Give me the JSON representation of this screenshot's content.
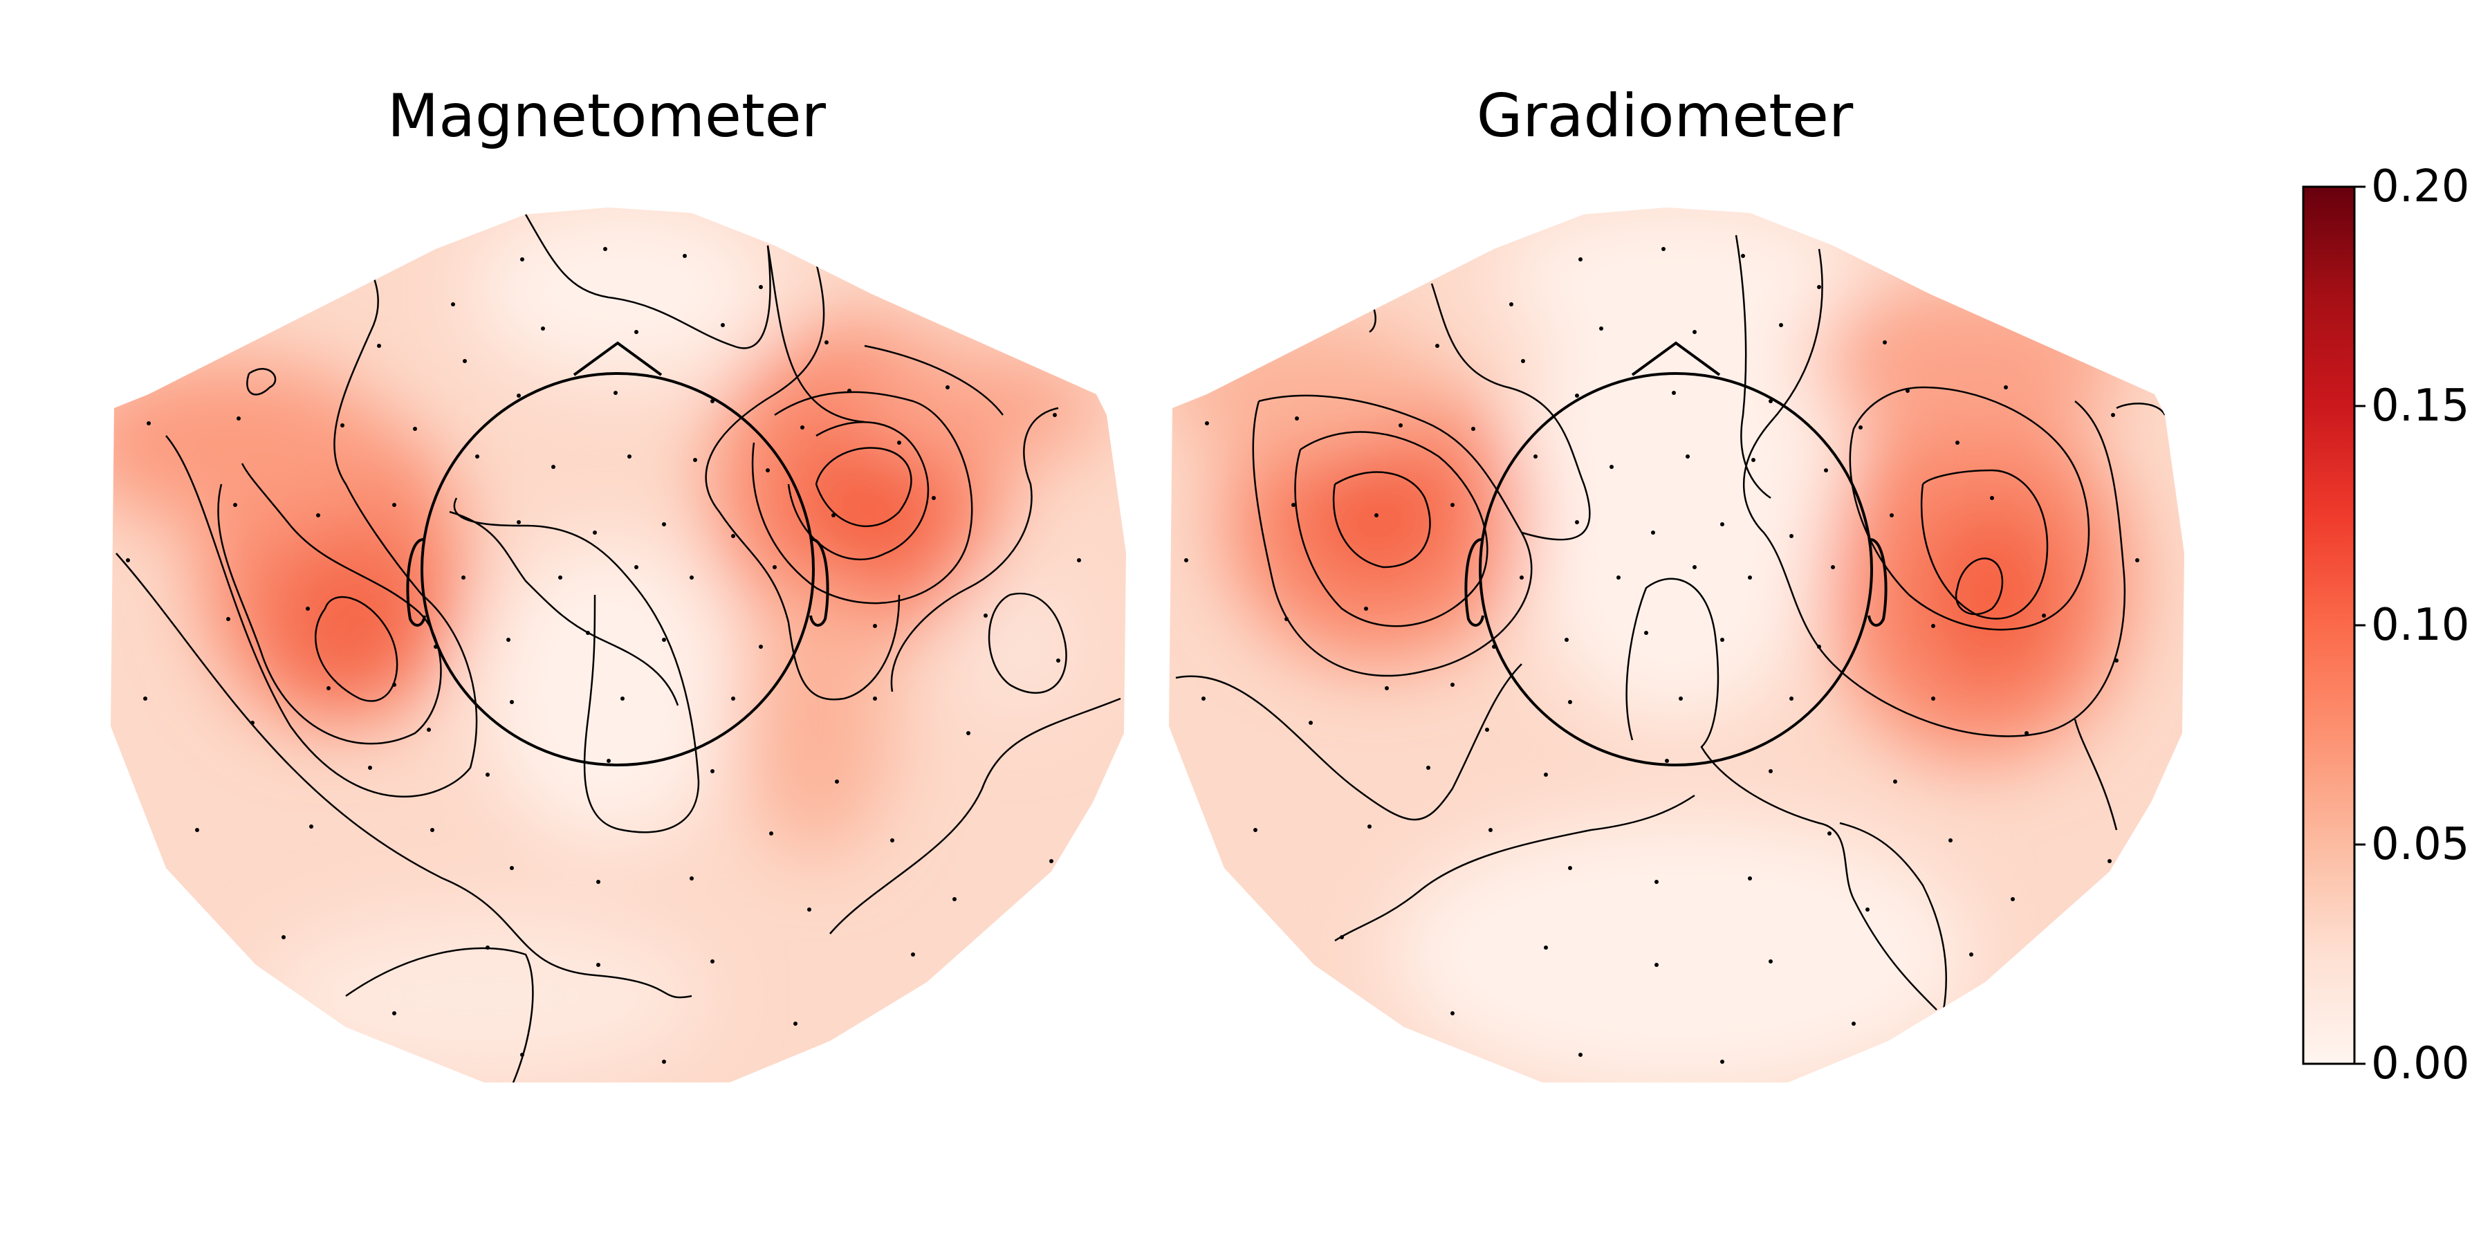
{
  "chart_data": [
    {
      "type": "heatmap",
      "subtype": "topomap",
      "title": "Magnetometer",
      "colormap": "Reds",
      "vlim": [
        0,
        0.2
      ],
      "peaks": [
        {
          "location": "left temporal",
          "value": 0.11
        },
        {
          "location": "right anterior temporal",
          "value": 0.12
        },
        {
          "location": "left frontal",
          "value": 0.08
        }
      ],
      "contours": true,
      "sensors_shown": true,
      "head_outline": true
    },
    {
      "type": "heatmap",
      "subtype": "topomap",
      "title": "Gradiometer",
      "colormap": "Reds",
      "vlim": [
        0,
        0.2
      ],
      "peaks": [
        {
          "location": "left temporal",
          "value": 0.12
        },
        {
          "location": "right temporal",
          "value": 0.12
        }
      ],
      "contours": true,
      "sensors_shown": true,
      "head_outline": true
    }
  ],
  "colorbar": {
    "ticks": [
      "0.00",
      "0.05",
      "0.10",
      "0.15",
      "0.20"
    ],
    "range": [
      0,
      0.2
    ],
    "colormap": "Reds"
  },
  "colors": {
    "low": "#fff5f0",
    "mid": "#fb6a4a",
    "high": "#67000d",
    "contour": "#000000",
    "sensor": "#000000"
  }
}
